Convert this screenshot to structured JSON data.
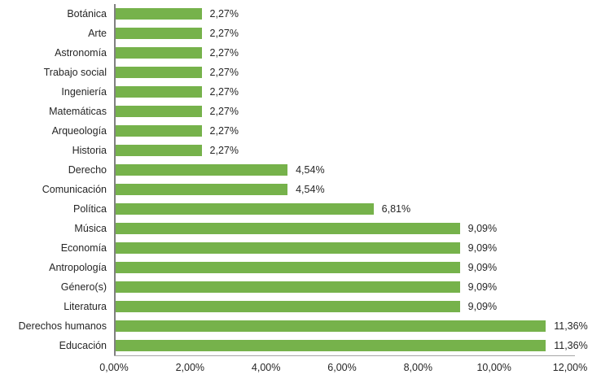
{
  "chart_data": {
    "type": "bar",
    "orientation": "horizontal",
    "title": "",
    "xlabel": "",
    "ylabel": "",
    "grid": false,
    "legend": false,
    "xlim": [
      0,
      12
    ],
    "categories": [
      "Botánica",
      "Arte",
      "Astronomía",
      "Trabajo social",
      "Ingeniería",
      "Matemáticas",
      "Arqueología",
      "Historia",
      "Derecho",
      "Comunicación",
      "Política",
      "Música",
      "Economía",
      "Antropología",
      "Género(s)",
      "Literatura",
      "Derechos humanos",
      "Educación"
    ],
    "values": [
      2.27,
      2.27,
      2.27,
      2.27,
      2.27,
      2.27,
      2.27,
      2.27,
      4.54,
      4.54,
      6.81,
      9.09,
      9.09,
      9.09,
      9.09,
      9.09,
      11.36,
      11.36
    ],
    "value_labels": [
      "2,27%",
      "2,27%",
      "2,27%",
      "2,27%",
      "2,27%",
      "2,27%",
      "2,27%",
      "2,27%",
      "4,54%",
      "4,54%",
      "6,81%",
      "9,09%",
      "9,09%",
      "9,09%",
      "9,09%",
      "9,09%",
      "11,36%",
      "11,36%"
    ],
    "x_ticks": [
      "0,00%",
      "2,00%",
      "4,00%",
      "6,00%",
      "8,00%",
      "10,00%",
      "12,00%"
    ],
    "colors": {
      "bar": "#76b24b",
      "y_axis_line": "#808080",
      "x_axis_line": "#a6a6a6",
      "text": "#262626",
      "background": "#ffffff"
    }
  }
}
